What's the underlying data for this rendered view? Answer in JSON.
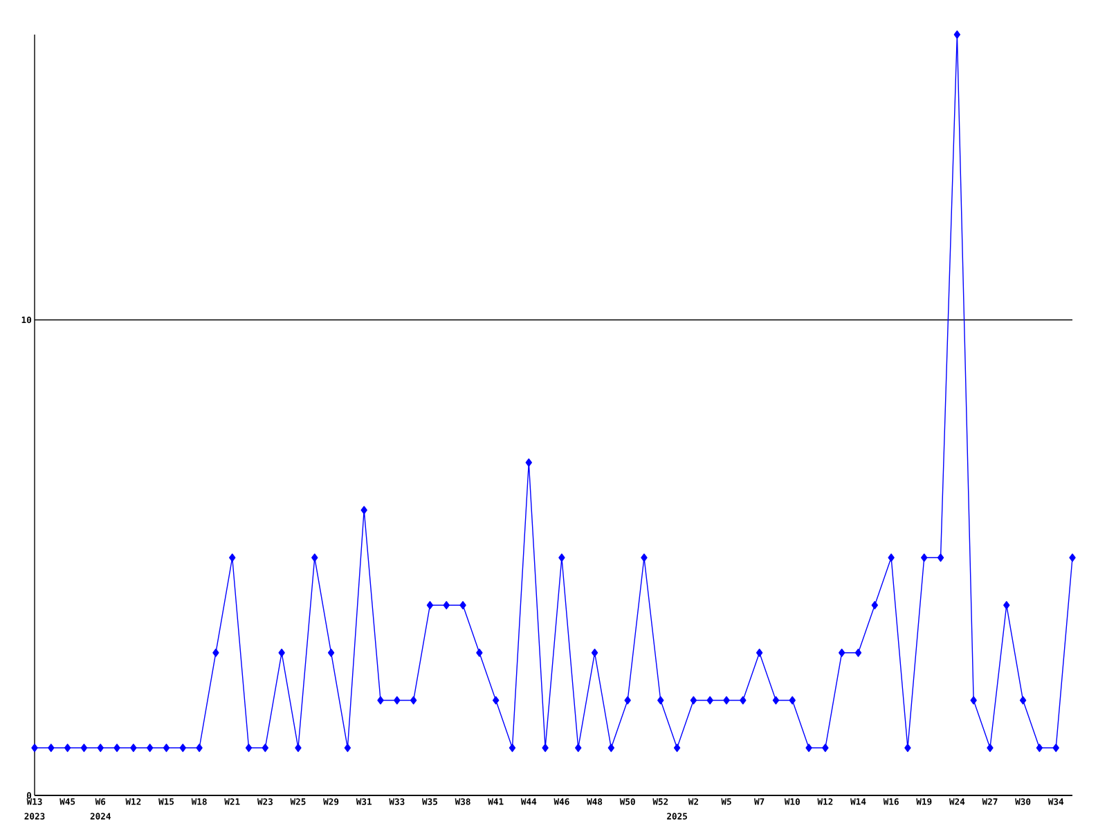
{
  "chart_data": {
    "type": "line",
    "categories": [
      "W13",
      null,
      "W45",
      null,
      "W6",
      null,
      "W12",
      null,
      "W15",
      null,
      "W18",
      null,
      "W21",
      null,
      "W23",
      null,
      "W25",
      null,
      "W29",
      null,
      "W31",
      null,
      "W33",
      null,
      "W35",
      null,
      "W38",
      null,
      "W41",
      null,
      "W44",
      null,
      "W46",
      null,
      "W48",
      null,
      "W50",
      null,
      "W52",
      null,
      "W2",
      null,
      "W5",
      null,
      "W7",
      null,
      "W10",
      null,
      "W12",
      null,
      "W14",
      null,
      "W16",
      null,
      "W19",
      null,
      "W24",
      null,
      "W27",
      null,
      "W30",
      null,
      "W34",
      null
    ],
    "series": [
      {
        "color": "#0000ff",
        "values": [
          1,
          1,
          1,
          1,
          1,
          1,
          1,
          1,
          1,
          1,
          1,
          3,
          5,
          1,
          1,
          3,
          1,
          5,
          3,
          1,
          6,
          2,
          2,
          2,
          4,
          4,
          4,
          3,
          2,
          1,
          7,
          1,
          5,
          1,
          3,
          1,
          2,
          5,
          2,
          1,
          2,
          2,
          2,
          2,
          3,
          2,
          2,
          1,
          1,
          3,
          3,
          4,
          5,
          1,
          5,
          5,
          16,
          2,
          1,
          4,
          2,
          1,
          1,
          5
        ]
      }
    ],
    "ylim": [
      0,
      16
    ],
    "yticks": [
      0,
      10
    ],
    "grid": "y",
    "marker": "diamond",
    "line_style": "solid",
    "annotations": [
      "2023",
      "2024",
      "2025"
    ]
  }
}
